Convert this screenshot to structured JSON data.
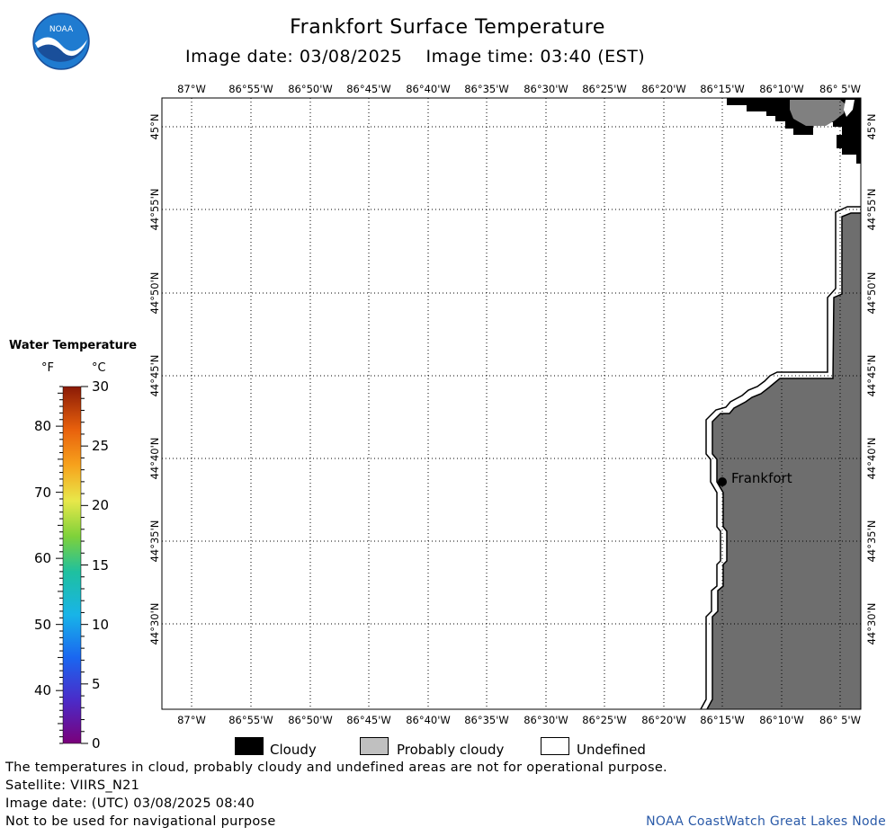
{
  "title": "Frankfort Surface Temperature",
  "image_date_label": "Image date: 03/08/2025",
  "image_time_label": "Image time: 03:40 (EST)",
  "logo_text": "NOAA",
  "lon_ticks_top": [
    "87°W",
    "86°55'W",
    "86°50'W",
    "86°45'W",
    "86°40'W",
    "86°35'W",
    "86°30'W",
    "86°25'W",
    "86°20'W",
    "86°15'W",
    "86°10'W",
    "86° 5'W"
  ],
  "lon_ticks_bottom": [
    "87°W",
    "86°55'W",
    "86°50'W",
    "86°45'W",
    "86°40'W",
    "86°35'W",
    "86°30'W",
    "86°25'W",
    "86°20'W",
    "86°15'W",
    "86°10'W",
    "86° 5'W"
  ],
  "lat_ticks": [
    "45°N",
    "44°55'N",
    "44°50'N",
    "44°45'N",
    "44°40'N",
    "44°35'N",
    "44°30'N"
  ],
  "place_label": "Frankfort",
  "legend": {
    "title": "Water Temperature",
    "unit_f": "°F",
    "unit_c": "°C",
    "f_labels": [
      "80",
      "70",
      "60",
      "50",
      "40"
    ],
    "c_labels": [
      "30",
      "25",
      "20",
      "15",
      "10",
      "5",
      "0"
    ],
    "range_f": [
      32,
      86
    ],
    "range_c": [
      0,
      30
    ]
  },
  "key": [
    {
      "label": "Cloudy",
      "color": "#000000"
    },
    {
      "label": "Probably cloudy",
      "color": "#c0c0c0"
    },
    {
      "label": "Undefined",
      "color": "#ffffff"
    }
  ],
  "land_color": "#6e6e6e",
  "footer": {
    "note": "The temperatures in cloud, probably cloudy and undefined areas are not for operational purpose.",
    "satellite": "Satellite: VIIRS_N21",
    "utc_date": "Image date: (UTC) 03/08/2025  08:40",
    "nav": "Not to be used for navigational purpose",
    "credit": "NOAA CoastWatch Great Lakes Node"
  }
}
